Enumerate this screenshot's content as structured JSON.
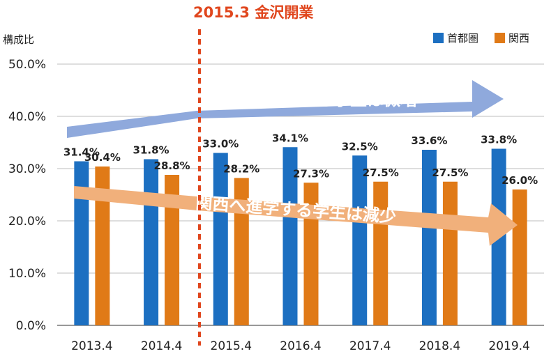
{
  "chart_data": {
    "type": "bar",
    "title": "",
    "xlabel": "",
    "ylabel": "構成比",
    "categories": [
      "2013.4",
      "2014.4",
      "2015.4",
      "2016.4",
      "2017.4",
      "2018.4",
      "2019.4"
    ],
    "series": [
      {
        "name": "首都圏",
        "values": [
          31.4,
          31.8,
          33.0,
          34.1,
          32.5,
          33.6,
          33.8
        ],
        "labels": [
          "31.4%",
          "31.8%",
          "33.0%",
          "34.1%",
          "32.5%",
          "33.6%",
          "33.8%"
        ],
        "color": "#1c6fc1"
      },
      {
        "name": "関西",
        "values": [
          30.4,
          28.8,
          28.2,
          27.3,
          27.5,
          27.5,
          26.0
        ],
        "labels": [
          "30.4%",
          "28.8%",
          "28.2%",
          "27.3%",
          "27.5%",
          "27.5%",
          "26.0%"
        ],
        "color": "#e07a17"
      }
    ],
    "ylim": [
      0,
      50
    ],
    "yticks": [
      "0.0%",
      "10.0%",
      "20.0%",
      "30.0%",
      "40.0%",
      "50.0%"
    ],
    "grid": true,
    "legend": "top-right",
    "annotations": {
      "event_label": "2015.3 金沢開業",
      "event_color": "#e0461d",
      "capital_arrow_text": "首都圏へ進学する学生は微増",
      "capital_arrow_color": "#8fa9dc",
      "kansai_arrow_text": "関西へ進学する学生は減少",
      "kansai_arrow_color": "#f1b07b"
    }
  }
}
